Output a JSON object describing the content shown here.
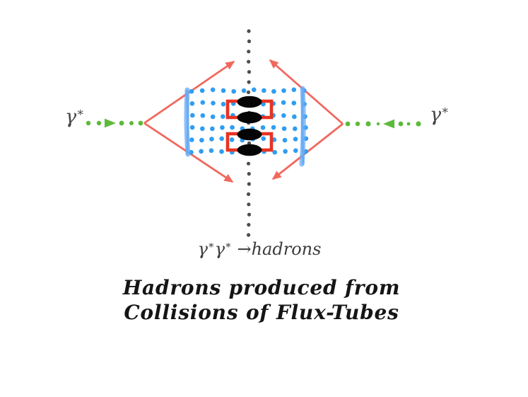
{
  "colors": {
    "red_arrow": "#f1685e",
    "red_box": "#e73322",
    "blue_dot": "#2f9df2",
    "blue_tube": "#68abf3",
    "green": "#5db93c",
    "gray_dot": "#4d4d4d",
    "label": "#474747",
    "formula": "#3c3c3c",
    "caption": "#151515",
    "hadron_black": "#050505"
  },
  "labels": {
    "gamma": "γ",
    "star": "∗"
  },
  "formula": {
    "g1": "γ",
    "s1": "∗",
    "g2": "γ",
    "s2": "∗",
    "arrow": " →",
    "product": "hadrons"
  },
  "caption": {
    "line1": "Hadrons produced from",
    "line2": "Collisions of Flux-Tubes"
  }
}
